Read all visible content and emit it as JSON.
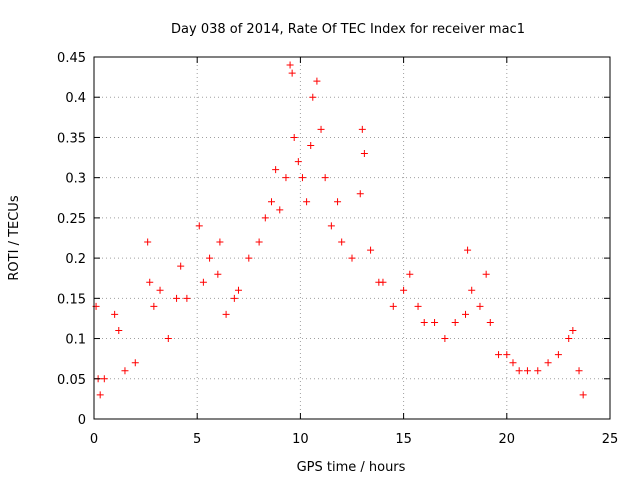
{
  "chart_data": {
    "type": "scatter",
    "title": "Day 038 of 2014, Rate Of TEC Index for receiver mac1",
    "xlabel": "GPS time / hours",
    "ylabel": "ROTI / TECUs",
    "xlim": [
      0,
      25
    ],
    "ylim": [
      0,
      0.45
    ],
    "xticks": [
      0,
      5,
      10,
      15,
      20,
      25
    ],
    "yticks": [
      0,
      0.05,
      0.1,
      0.15,
      0.2,
      0.25,
      0.3,
      0.35,
      0.4,
      0.45
    ],
    "grid": true,
    "marker": "+",
    "colors": {
      "series": "#ff0000",
      "grid": "#a0a0a0",
      "axes": "#000000"
    },
    "series": [
      {
        "name": "ROTI",
        "points": [
          [
            0.1,
            0.14
          ],
          [
            0.2,
            0.05
          ],
          [
            0.3,
            0.03
          ],
          [
            0.5,
            0.05
          ],
          [
            1.0,
            0.13
          ],
          [
            1.2,
            0.11
          ],
          [
            1.5,
            0.06
          ],
          [
            2.0,
            0.07
          ],
          [
            2.6,
            0.22
          ],
          [
            2.7,
            0.17
          ],
          [
            2.9,
            0.14
          ],
          [
            3.2,
            0.16
          ],
          [
            3.6,
            0.1
          ],
          [
            4.0,
            0.15
          ],
          [
            4.2,
            0.19
          ],
          [
            4.5,
            0.15
          ],
          [
            5.1,
            0.24
          ],
          [
            5.3,
            0.17
          ],
          [
            5.6,
            0.2
          ],
          [
            6.0,
            0.18
          ],
          [
            6.1,
            0.22
          ],
          [
            6.4,
            0.13
          ],
          [
            6.8,
            0.15
          ],
          [
            7.0,
            0.16
          ],
          [
            7.5,
            0.2
          ],
          [
            8.0,
            0.22
          ],
          [
            8.3,
            0.25
          ],
          [
            8.6,
            0.27
          ],
          [
            8.8,
            0.31
          ],
          [
            9.0,
            0.26
          ],
          [
            9.3,
            0.3
          ],
          [
            9.5,
            0.44
          ],
          [
            9.6,
            0.43
          ],
          [
            9.7,
            0.35
          ],
          [
            9.9,
            0.32
          ],
          [
            10.1,
            0.3
          ],
          [
            10.3,
            0.27
          ],
          [
            10.5,
            0.34
          ],
          [
            10.6,
            0.4
          ],
          [
            10.8,
            0.42
          ],
          [
            11.0,
            0.36
          ],
          [
            11.2,
            0.3
          ],
          [
            11.5,
            0.24
          ],
          [
            11.8,
            0.27
          ],
          [
            12.0,
            0.22
          ],
          [
            12.5,
            0.2
          ],
          [
            12.9,
            0.28
          ],
          [
            13.0,
            0.36
          ],
          [
            13.1,
            0.33
          ],
          [
            13.4,
            0.21
          ],
          [
            13.8,
            0.17
          ],
          [
            14.0,
            0.17
          ],
          [
            14.5,
            0.14
          ],
          [
            15.0,
            0.16
          ],
          [
            15.3,
            0.18
          ],
          [
            15.7,
            0.14
          ],
          [
            16.0,
            0.12
          ],
          [
            16.5,
            0.12
          ],
          [
            17.0,
            0.1
          ],
          [
            17.5,
            0.12
          ],
          [
            18.0,
            0.13
          ],
          [
            18.1,
            0.21
          ],
          [
            18.3,
            0.16
          ],
          [
            18.7,
            0.14
          ],
          [
            19.0,
            0.18
          ],
          [
            19.2,
            0.12
          ],
          [
            19.6,
            0.08
          ],
          [
            20.0,
            0.08
          ],
          [
            20.3,
            0.07
          ],
          [
            20.6,
            0.06
          ],
          [
            21.0,
            0.06
          ],
          [
            21.5,
            0.06
          ],
          [
            22.0,
            0.07
          ],
          [
            22.5,
            0.08
          ],
          [
            23.0,
            0.1
          ],
          [
            23.2,
            0.11
          ],
          [
            23.5,
            0.06
          ],
          [
            23.7,
            0.03
          ]
        ]
      }
    ]
  }
}
